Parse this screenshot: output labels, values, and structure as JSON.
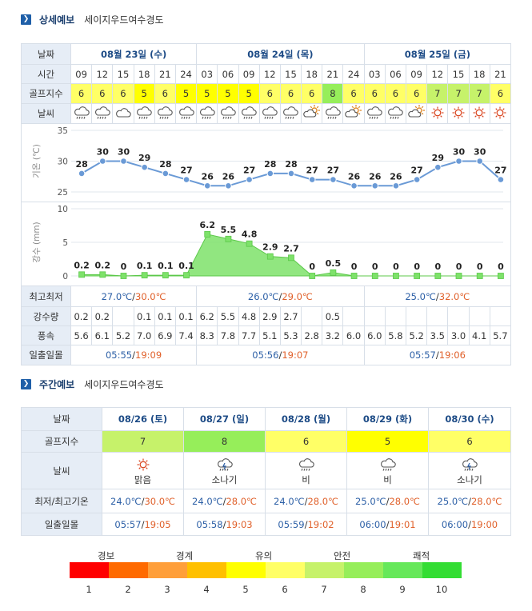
{
  "detail": {
    "section_title": "상세예보",
    "location": "세이지우드여수경도",
    "labels": {
      "date": "날짜",
      "time": "시간",
      "golf_index": "골프지수",
      "weather": "날씨",
      "temp_axis": "기온 (℃)",
      "rain_axis": "강수 (mm)",
      "minmax": "최고최저",
      "rainfall": "강수량",
      "wind": "풍속",
      "sun": "일출일몰"
    },
    "days": [
      {
        "date": "08월 23일 (수)",
        "span": 6,
        "min": "27.0℃",
        "max": "30.0℃",
        "sunrise": "05:55",
        "sunset": "19:09"
      },
      {
        "date": "08월 24일 (목)",
        "span": 8,
        "min": "26.0℃",
        "max": "29.0℃",
        "sunrise": "05:56",
        "sunset": "19:07"
      },
      {
        "date": "08월 25일 (금)",
        "span": 7,
        "min": "25.0℃",
        "max": "32.0℃",
        "sunrise": "05:57",
        "sunset": "19:06"
      }
    ],
    "sep": "/",
    "times": [
      "09",
      "12",
      "15",
      "18",
      "21",
      "24",
      "03",
      "06",
      "09",
      "12",
      "15",
      "18",
      "21",
      "24",
      "03",
      "06",
      "09",
      "12",
      "15",
      "18",
      "21"
    ],
    "golf": [
      "6",
      "6",
      "6",
      "5",
      "6",
      "5",
      "5",
      "5",
      "5",
      "6",
      "6",
      "6",
      "8",
      "6",
      "6",
      "6",
      "6",
      "7",
      "7",
      "7",
      "6"
    ],
    "weather_icons": [
      "rain-cloud",
      "rain-cloud",
      "cloud",
      "rain-cloud",
      "rain-cloud",
      "rain-cloud",
      "rain-cloud",
      "rain-cloud",
      "rain-cloud",
      "rain-cloud",
      "rain-cloud",
      "sun-cloud",
      "rain-cloud",
      "sun-cloud",
      "rain-cloud",
      "rain-cloud",
      "sun-cloud",
      "sun",
      "sun",
      "sun",
      "sun"
    ],
    "rainfall": [
      "0.2",
      "0.2",
      "",
      "0.1",
      "0.1",
      "0.1",
      "6.2",
      "5.5",
      "4.8",
      "2.9",
      "2.7",
      "",
      "0.5",
      "",
      "",
      "",
      "",
      "",
      "",
      "",
      ""
    ],
    "wind": [
      "5.6",
      "6.1",
      "5.2",
      "7.0",
      "6.9",
      "7.4",
      "8.3",
      "7.8",
      "7.7",
      "5.1",
      "5.3",
      "2.8",
      "3.2",
      "6.0",
      "6.0",
      "5.8",
      "5.2",
      "3.5",
      "3.0",
      "4.1",
      "5.7"
    ]
  },
  "chart_data": [
    {
      "type": "line",
      "title": "",
      "ylabel": "기온 (℃)",
      "ylim": [
        25,
        35
      ],
      "yticks": [
        25,
        30,
        35
      ],
      "grid": true,
      "color": "#6a9ad6",
      "values": [
        28,
        30,
        30,
        29,
        28,
        27,
        26,
        26,
        27,
        28,
        28,
        27,
        27,
        26,
        26,
        26,
        27,
        29,
        30,
        30,
        27
      ]
    },
    {
      "type": "area",
      "title": "",
      "ylabel": "강수 (mm)",
      "ylim": [
        0,
        10
      ],
      "yticks": [
        0,
        5,
        10
      ],
      "grid": true,
      "color": "#7ee26a",
      "values": [
        0.2,
        0.2,
        0,
        0.1,
        0.1,
        0.1,
        6.2,
        5.5,
        4.8,
        2.9,
        2.7,
        0,
        0.5,
        0,
        0,
        0,
        0,
        0,
        0,
        0,
        0
      ]
    }
  ],
  "weekly": {
    "section_title": "주간예보",
    "location": "세이지우드여수경도",
    "labels": {
      "date": "날짜",
      "golf_index": "골프지수",
      "weather": "날씨",
      "minmax": "최저/최고기온",
      "sun": "일출일몰"
    },
    "days": [
      {
        "date": "08/26 (토)",
        "golf": "7",
        "icon": "sun",
        "weather": "맑음",
        "min": "24.0℃",
        "max": "30.0℃",
        "sunrise": "05:57",
        "sunset": "19:05"
      },
      {
        "date": "08/27 (일)",
        "golf": "8",
        "icon": "shower-cloud",
        "weather": "소나기",
        "min": "24.0℃",
        "max": "28.0℃",
        "sunrise": "05:58",
        "sunset": "19:03"
      },
      {
        "date": "08/28 (월)",
        "golf": "6",
        "icon": "rain-cloud",
        "weather": "비",
        "min": "24.0℃",
        "max": "28.0℃",
        "sunrise": "05:59",
        "sunset": "19:02"
      },
      {
        "date": "08/29 (화)",
        "golf": "5",
        "icon": "rain-cloud",
        "weather": "비",
        "min": "25.0℃",
        "max": "28.0℃",
        "sunrise": "06:00",
        "sunset": "19:01"
      },
      {
        "date": "08/30 (수)",
        "golf": "6",
        "icon": "shower-cloud",
        "weather": "소나기",
        "min": "25.0℃",
        "max": "28.0℃",
        "sunrise": "06:00",
        "sunset": "19:00"
      }
    ]
  },
  "legend": {
    "labels": [
      "경보",
      "경계",
      "유의",
      "안전",
      "쾌적"
    ],
    "numbers": [
      "1",
      "2",
      "3",
      "4",
      "5",
      "6",
      "7",
      "8",
      "9",
      "10"
    ],
    "colors": [
      "#ff0000",
      "#ff6a00",
      "#ff9f3a",
      "#ffc000",
      "#ffff00",
      "#ffff66",
      "#c6f26a",
      "#96ee5a",
      "#66e85a",
      "#33dd33"
    ]
  }
}
